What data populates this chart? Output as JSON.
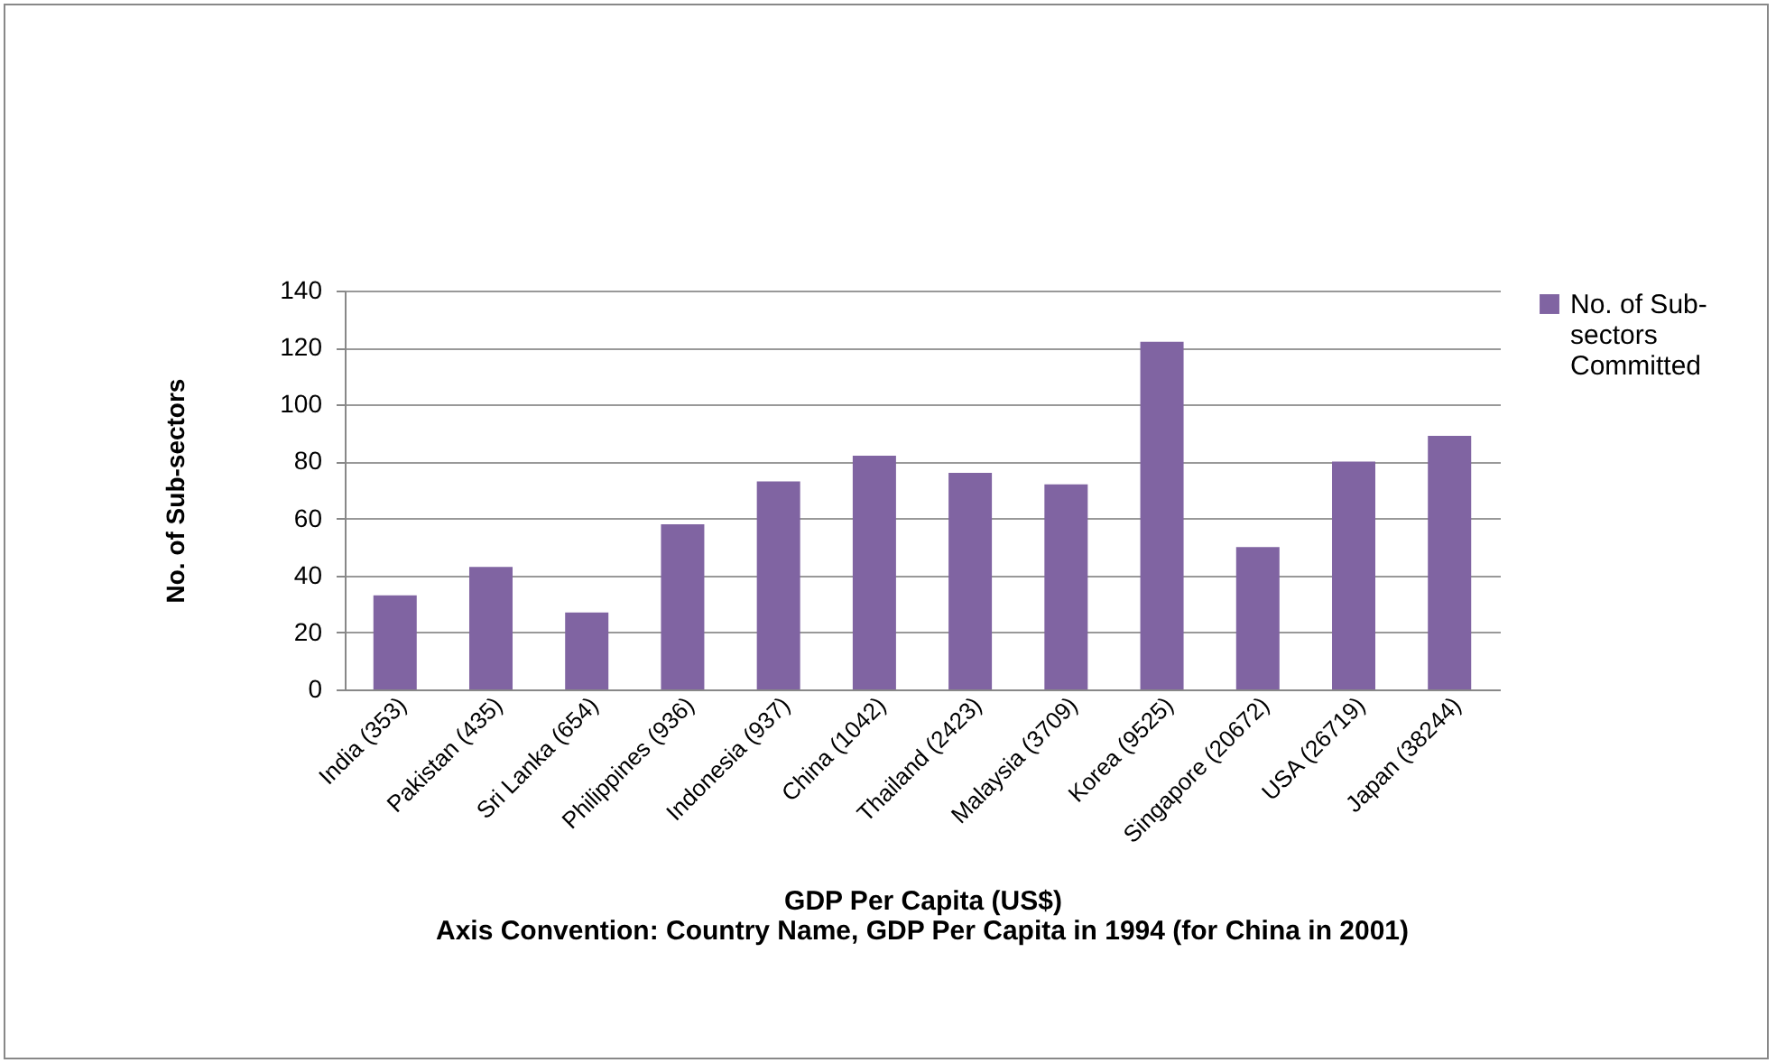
{
  "chart_data": {
    "type": "bar",
    "xlabel": "GDP Per Capita (US$)",
    "ylabel": "No. of Sub-sectors",
    "annotations": [
      "Axis Convention: Country Name, GDP Per Capita in 1994 (for China in 2001)"
    ],
    "categories": [
      "India (353)",
      "Pakistan (435)",
      "Sri Lanka (654)",
      "Philippines (936)",
      "Indonesia (937)",
      "China (1042)",
      "Thailand (2423)",
      "Malaysia (3709)",
      "Korea (9525)",
      "Singapore (20672)",
      "USA (26719)",
      "Japan (38244)"
    ],
    "series": [
      {
        "name": "No. of Sub-sectors Committed",
        "color": "#8064a2",
        "values": [
          33,
          43,
          27,
          58,
          73,
          82,
          76,
          72,
          122,
          50,
          80,
          89
        ]
      }
    ],
    "ylim": [
      0,
      140
    ],
    "yticks": [
      0,
      20,
      40,
      60,
      80,
      100,
      120,
      140
    ],
    "grid": "y",
    "legend": "right"
  }
}
